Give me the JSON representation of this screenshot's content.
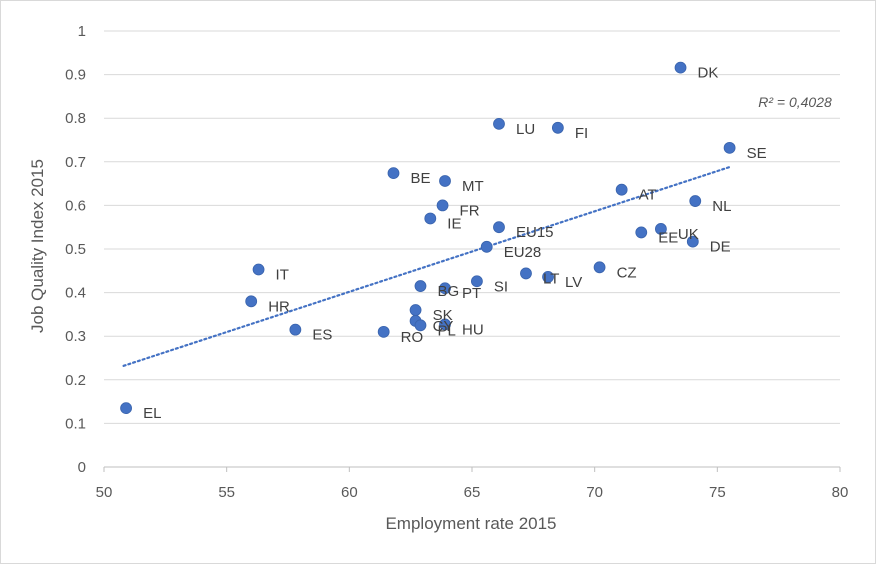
{
  "chart_data": {
    "type": "scatter",
    "title": "",
    "xlabel": "Employment rate 2015",
    "ylabel": "Job Quality Index 2015",
    "xlim": [
      50,
      80
    ],
    "ylim": [
      0,
      1
    ],
    "xticks": [
      "50",
      "55",
      "60",
      "65",
      "70",
      "75",
      "80"
    ],
    "yticks": [
      "0",
      "0.1",
      "0.2",
      "0.3",
      "0.4",
      "0.5",
      "0.6",
      "0.7",
      "0.8",
      "0.9",
      "1"
    ],
    "grid": "horizontal",
    "marker_color": "#4472c4",
    "trendline": {
      "type": "linear",
      "style": "dotted",
      "color": "#4472c4",
      "x_start": 50.8,
      "y_start": 0.232,
      "x_end": 75.5,
      "y_end": 0.688,
      "r2_label": "R² = 0,4028"
    },
    "points": [
      {
        "label": "EL",
        "x": 50.9,
        "y": 0.135
      },
      {
        "label": "HR",
        "x": 56.0,
        "y": 0.38
      },
      {
        "label": "IT",
        "x": 56.3,
        "y": 0.453
      },
      {
        "label": "ES",
        "x": 57.8,
        "y": 0.315
      },
      {
        "label": "RO",
        "x": 61.4,
        "y": 0.31
      },
      {
        "label": "BE",
        "x": 61.8,
        "y": 0.674
      },
      {
        "label": "SK",
        "x": 62.7,
        "y": 0.36
      },
      {
        "label": "CY",
        "x": 62.7,
        "y": 0.335
      },
      {
        "label": "PL",
        "x": 62.9,
        "y": 0.325
      },
      {
        "label": "BG",
        "x": 62.9,
        "y": 0.415
      },
      {
        "label": "IE",
        "x": 63.3,
        "y": 0.57
      },
      {
        "label": "FR",
        "x": 63.8,
        "y": 0.6
      },
      {
        "label": "MT",
        "x": 63.9,
        "y": 0.656
      },
      {
        "label": "PT",
        "x": 63.9,
        "y": 0.41
      },
      {
        "label": "HU",
        "x": 63.9,
        "y": 0.327
      },
      {
        "label": "SI",
        "x": 65.2,
        "y": 0.426
      },
      {
        "label": "EU28",
        "x": 65.6,
        "y": 0.505
      },
      {
        "label": "EU15",
        "x": 66.1,
        "y": 0.55
      },
      {
        "label": "LU",
        "x": 66.1,
        "y": 0.787
      },
      {
        "label": "LT",
        "x": 67.2,
        "y": 0.444
      },
      {
        "label": "LV",
        "x": 68.1,
        "y": 0.436
      },
      {
        "label": "FI",
        "x": 68.5,
        "y": 0.778
      },
      {
        "label": "CZ",
        "x": 70.2,
        "y": 0.458
      },
      {
        "label": "AT",
        "x": 71.1,
        "y": 0.636
      },
      {
        "label": "EE",
        "x": 71.9,
        "y": 0.538
      },
      {
        "label": "UK",
        "x": 72.7,
        "y": 0.546
      },
      {
        "label": "DK",
        "x": 73.5,
        "y": 0.916
      },
      {
        "label": "DE",
        "x": 74.0,
        "y": 0.517
      },
      {
        "label": "NL",
        "x": 74.1,
        "y": 0.61
      },
      {
        "label": "SE",
        "x": 75.5,
        "y": 0.732
      }
    ]
  }
}
